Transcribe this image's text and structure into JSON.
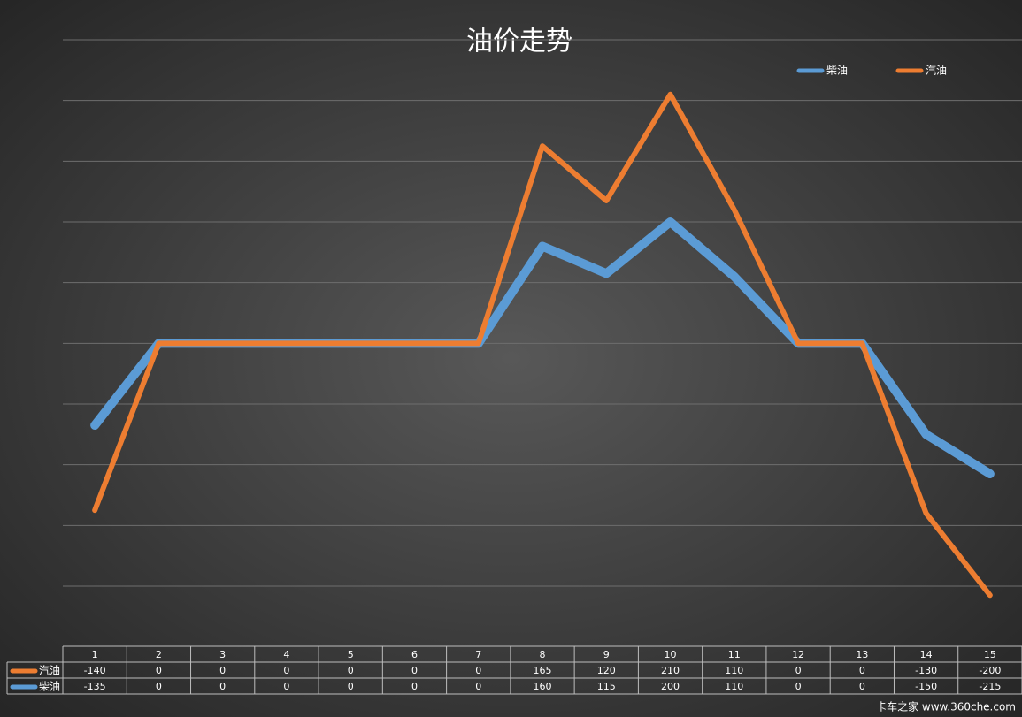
{
  "chart_data": {
    "type": "line",
    "stacked": true,
    "title": "油价走势",
    "categories": [
      "1",
      "2",
      "3",
      "4",
      "5",
      "6",
      "7",
      "8",
      "9",
      "10",
      "11",
      "12",
      "13",
      "14",
      "15"
    ],
    "series": [
      {
        "name": "柴油",
        "color": "#5b9bd5",
        "values": [
          -135,
          0,
          0,
          0,
          0,
          0,
          0,
          160,
          115,
          200,
          110,
          0,
          0,
          -150,
          -215
        ]
      },
      {
        "name": "汽油",
        "color": "#ed7d31",
        "values": [
          -140,
          0,
          0,
          0,
          0,
          0,
          0,
          165,
          120,
          210,
          110,
          0,
          0,
          -130,
          -200
        ]
      }
    ],
    "ylim": [
      -400,
      500
    ],
    "yticks": [
      -400,
      -300,
      -200,
      -100,
      0,
      100,
      200,
      300,
      400,
      500
    ],
    "grid": true,
    "legend": "top-right",
    "watermark": "卡车之家 www.360che.com"
  }
}
